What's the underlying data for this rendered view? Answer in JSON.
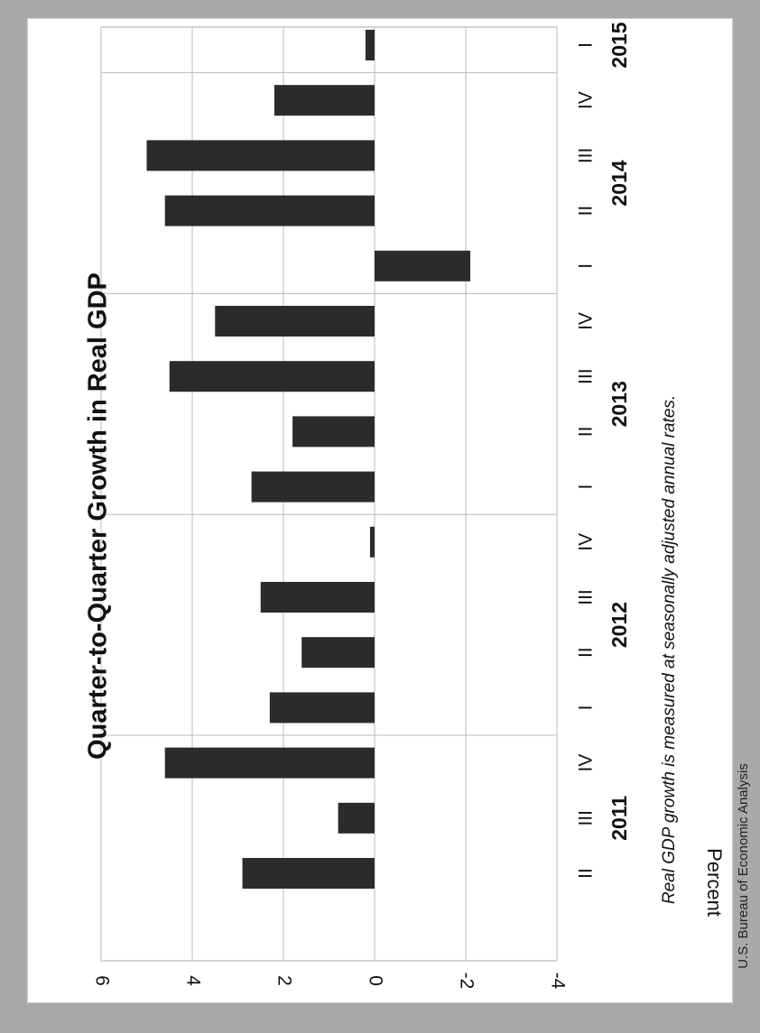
{
  "chart_data": {
    "type": "bar",
    "title": "Quarter-to-Quarter Growth in Real GDP",
    "ylabel": "Percent",
    "ylim": [
      -4,
      6
    ],
    "yticks": [
      6,
      4,
      2,
      0,
      -2,
      -4
    ],
    "grid": true,
    "categories": [
      "II",
      "III",
      "IV",
      "I",
      "II",
      "III",
      "IV",
      "I",
      "II",
      "III",
      "IV",
      "I",
      "II",
      "III",
      "IV",
      "I"
    ],
    "years": [
      {
        "label": "2011",
        "start": 0,
        "end": 2
      },
      {
        "label": "2012",
        "start": 3,
        "end": 6
      },
      {
        "label": "2013",
        "start": 7,
        "end": 10
      },
      {
        "label": "2014",
        "start": 11,
        "end": 14
      },
      {
        "label": "2015",
        "start": 15,
        "end": 15
      }
    ],
    "series": [
      {
        "values": [
          2.9,
          0.8,
          4.6,
          2.3,
          1.6,
          2.5,
          0.1,
          2.7,
          1.8,
          4.5,
          3.5,
          -2.1,
          4.6,
          5.0,
          2.2,
          0.2
        ]
      }
    ],
    "bar_color": "#2b2b2b",
    "note": "Real GDP growth is measured at seasonally adjusted annual rates."
  },
  "source": "U.S. Bureau of Economic Analysis"
}
